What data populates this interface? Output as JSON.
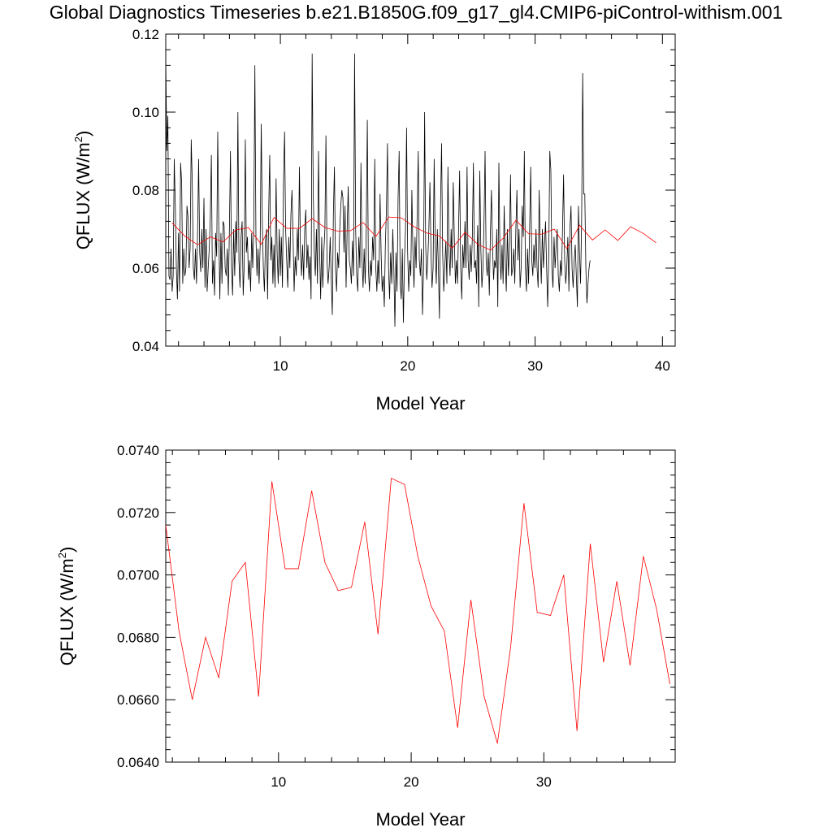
{
  "figure": {
    "title": "Global Diagnostics Timeseries b.e21.B1850G.f09_g17_gl4.CMIP6-piControl-withism.001"
  },
  "chart_data": [
    {
      "type": "line",
      "xlabel": "Model Year",
      "ylabel": "QFLUX (W/m",
      "ylabel_sup": "2",
      "ylabel_tail": ")",
      "xlim": [
        1,
        41
      ],
      "ylim": [
        0.04,
        0.12
      ],
      "xticks": [
        10,
        20,
        30,
        40
      ],
      "xtick_labels": [
        "10",
        "20",
        "30",
        "40"
      ],
      "yticks": [
        0.04,
        0.06,
        0.08,
        0.1,
        0.12
      ],
      "ytick_labels": [
        "0.04",
        "0.06",
        "0.08",
        "0.10",
        "0.12"
      ],
      "grid": false,
      "series": [
        {
          "color": "#000000",
          "x_start": 1.0,
          "x_step": 0.0833,
          "values": [
            0.114,
            0.09,
            0.099,
            0.058,
            0.057,
            0.065,
            0.054,
            0.058,
            0.088,
            0.076,
            0.06,
            0.052,
            0.069,
            0.054,
            0.087,
            0.082,
            0.056,
            0.065,
            0.058,
            0.06,
            0.076,
            0.073,
            0.06,
            0.065,
            0.093,
            0.082,
            0.06,
            0.057,
            0.065,
            0.056,
            0.069,
            0.088,
            0.064,
            0.059,
            0.07,
            0.06,
            0.078,
            0.055,
            0.07,
            0.054,
            0.06,
            0.065,
            0.073,
            0.089,
            0.056,
            0.062,
            0.053,
            0.069,
            0.063,
            0.095,
            0.07,
            0.052,
            0.069,
            0.056,
            0.072,
            0.071,
            0.06,
            0.058,
            0.065,
            0.053,
            0.07,
            0.09,
            0.06,
            0.053,
            0.07,
            0.058,
            0.072,
            0.064,
            0.1,
            0.062,
            0.055,
            0.068,
            0.072,
            0.053,
            0.061,
            0.093,
            0.064,
            0.068,
            0.057,
            0.062,
            0.054,
            0.069,
            0.06,
            0.071,
            0.112,
            0.068,
            0.058,
            0.065,
            0.056,
            0.066,
            0.097,
            0.072,
            0.06,
            0.054,
            0.067,
            0.07,
            0.052,
            0.074,
            0.089,
            0.062,
            0.068,
            0.056,
            0.066,
            0.055,
            0.083,
            0.064,
            0.056,
            0.07,
            0.058,
            0.068,
            0.055,
            0.082,
            0.095,
            0.07,
            0.062,
            0.055,
            0.068,
            0.06,
            0.074,
            0.08,
            0.068,
            0.054,
            0.063,
            0.058,
            0.07,
            0.062,
            0.086,
            0.064,
            0.058,
            0.066,
            0.057,
            0.07,
            0.075,
            0.06,
            0.066,
            0.057,
            0.063,
            0.052,
            0.115,
            0.08,
            0.064,
            0.058,
            0.07,
            0.056,
            0.09,
            0.065,
            0.052,
            0.068,
            0.055,
            0.064,
            0.07,
            0.094,
            0.062,
            0.056,
            0.06,
            0.068,
            0.057,
            0.048,
            0.074,
            0.086,
            0.06,
            0.054,
            0.064,
            0.06,
            0.07,
            0.076,
            0.08,
            0.078,
            0.064,
            0.076,
            0.055,
            0.07,
            0.081,
            0.062,
            0.06,
            0.056,
            0.067,
            0.058,
            0.115,
            0.07,
            0.058,
            0.054,
            0.068,
            0.06,
            0.087,
            0.062,
            0.055,
            0.065,
            0.056,
            0.07,
            0.098,
            0.06,
            0.054,
            0.062,
            0.058,
            0.068,
            0.062,
            0.088,
            0.06,
            0.054,
            0.062,
            0.056,
            0.079,
            0.064,
            0.054,
            0.058,
            0.05,
            0.066,
            0.075,
            0.092,
            0.06,
            0.052,
            0.064,
            0.056,
            0.07,
            0.06,
            0.045,
            0.064,
            0.054,
            0.078,
            0.09,
            0.056,
            0.052,
            0.065,
            0.046,
            0.062,
            0.07,
            0.096,
            0.064,
            0.054,
            0.062,
            0.058,
            0.08,
            0.064,
            0.055,
            0.068,
            0.06,
            0.074,
            0.09,
            0.062,
            0.058,
            0.065,
            0.048,
            0.06,
            0.1,
            0.066,
            0.057,
            0.062,
            0.07,
            0.082,
            0.064,
            0.055,
            0.06,
            0.088,
            0.066,
            0.056,
            0.07,
            0.06,
            0.047,
            0.076,
            0.092,
            0.064,
            0.054,
            0.06,
            0.067,
            0.056,
            0.086,
            0.064,
            0.058,
            0.07,
            0.06,
            0.082,
            0.068,
            0.056,
            0.062,
            0.056,
            0.07,
            0.085,
            0.06,
            0.052,
            0.066,
            0.06,
            0.072,
            0.06,
            0.086,
            0.062,
            0.057,
            0.066,
            0.059,
            0.068,
            0.087,
            0.06,
            0.062,
            0.056,
            0.071,
            0.05,
            0.085,
            0.065,
            0.055,
            0.06,
            0.072,
            0.09,
            0.062,
            0.058,
            0.064,
            0.053,
            0.069,
            0.08,
            0.066,
            0.057,
            0.062,
            0.06,
            0.07,
            0.05,
            0.087,
            0.064,
            0.057,
            0.066,
            0.056,
            0.076,
            0.062,
            0.054,
            0.07,
            0.058,
            0.066,
            0.084,
            0.058,
            0.06,
            0.065,
            0.056,
            0.07,
            0.08,
            0.062,
            0.07,
            0.055,
            0.06,
            0.076,
            0.068,
            0.09,
            0.06,
            0.054,
            0.065,
            0.056,
            0.07,
            0.086,
            0.062,
            0.058,
            0.066,
            0.06,
            0.07,
            0.06,
            0.055,
            0.08,
            0.065,
            0.056,
            0.07,
            0.06,
            0.066,
            0.072,
            0.06,
            0.05,
            0.063,
            0.09,
            0.085,
            0.06,
            0.055,
            0.068,
            0.06,
            0.066,
            0.07,
            0.058,
            0.054,
            0.062,
            0.058,
            0.07,
            0.084,
            0.062,
            0.056,
            0.06,
            0.068,
            0.054,
            0.07,
            0.076,
            0.06,
            0.055,
            0.062,
            0.066,
            0.058,
            0.05,
            0.076,
            0.064,
            0.056,
            0.072,
            0.11,
            0.079,
            0.079,
            0.06,
            0.051,
            0.056,
            0.06,
            0.062
          ]
        },
        {
          "color": "#ff0000",
          "x_start": 1.5,
          "x_step": 1,
          "values": [
            0.0716,
            0.0682,
            0.066,
            0.068,
            0.0667,
            0.0698,
            0.0704,
            0.0661,
            0.073,
            0.0702,
            0.0702,
            0.0727,
            0.0704,
            0.0695,
            0.0696,
            0.0717,
            0.0681,
            0.0731,
            0.0729,
            0.0706,
            0.069,
            0.0682,
            0.0651,
            0.0692,
            0.0661,
            0.0646,
            0.0677,
            0.0723,
            0.0688,
            0.0687,
            0.07,
            0.065,
            0.071,
            0.0672,
            0.0698,
            0.0671,
            0.0706,
            0.0689,
            0.0665
          ]
        }
      ]
    },
    {
      "type": "line",
      "xlabel": "Model Year",
      "ylabel": "QFLUX (W/m",
      "ylabel_sup": "2",
      "ylabel_tail": ")",
      "xlim": [
        1.5,
        39.9
      ],
      "ylim": [
        0.064,
        0.074
      ],
      "xticks": [
        10,
        20,
        30
      ],
      "xtick_labels": [
        "10",
        "20",
        "30"
      ],
      "yticks": [
        0.064,
        0.066,
        0.068,
        0.07,
        0.072,
        0.074
      ],
      "ytick_labels": [
        "0.0640",
        "0.0660",
        "0.0680",
        "0.0700",
        "0.0720",
        "0.0740"
      ],
      "grid": false,
      "series": [
        {
          "color": "#ff0000",
          "x_start": 1.5,
          "x_step": 1,
          "values": [
            0.0716,
            0.0682,
            0.066,
            0.068,
            0.0667,
            0.0698,
            0.0704,
            0.0661,
            0.073,
            0.0702,
            0.0702,
            0.0727,
            0.0704,
            0.0695,
            0.0696,
            0.0717,
            0.0681,
            0.0731,
            0.0729,
            0.0706,
            0.069,
            0.0682,
            0.0651,
            0.0692,
            0.0661,
            0.0646,
            0.0677,
            0.0723,
            0.0688,
            0.0687,
            0.07,
            0.065,
            0.071,
            0.0672,
            0.0698,
            0.0671,
            0.0706,
            0.0689,
            0.0665
          ]
        }
      ]
    }
  ]
}
